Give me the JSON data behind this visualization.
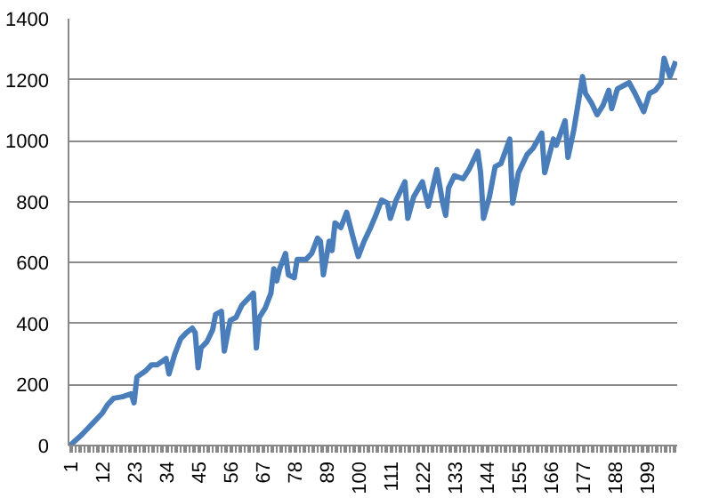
{
  "chart_data": {
    "type": "line",
    "x": [
      1,
      5,
      8,
      12,
      14,
      16,
      19,
      22,
      23,
      24,
      27,
      29,
      31,
      34,
      35,
      37,
      39,
      41,
      43,
      44,
      45,
      46,
      48,
      50,
      51,
      53,
      54,
      56,
      58,
      60,
      62,
      64,
      65,
      66,
      68,
      70,
      71,
      72,
      73,
      75,
      76,
      78,
      79,
      82,
      84,
      86,
      87,
      88,
      90,
      91,
      92,
      94,
      96,
      98,
      100,
      102,
      104,
      106,
      108,
      110,
      111,
      113,
      116,
      117,
      119,
      122,
      124,
      127,
      129,
      130,
      131,
      133,
      136,
      138,
      141,
      142,
      143,
      145,
      147,
      149,
      152,
      153,
      155,
      158,
      160,
      163,
      164,
      167,
      168,
      171,
      172,
      174,
      177,
      178,
      180,
      182,
      184,
      186,
      187,
      189,
      193,
      195,
      198,
      200,
      202,
      204,
      205,
      207,
      209
    ],
    "series": [
      {
        "color": "#4a7ebb",
        "values": [
          0,
          35,
          65,
          105,
          135,
          155,
          160,
          170,
          140,
          225,
          245,
          265,
          265,
          285,
          235,
          300,
          350,
          370,
          385,
          370,
          255,
          320,
          340,
          380,
          430,
          440,
          310,
          410,
          420,
          460,
          480,
          500,
          320,
          420,
          450,
          500,
          580,
          540,
          580,
          630,
          560,
          550,
          610,
          610,
          630,
          680,
          670,
          560,
          670,
          640,
          730,
          715,
          765,
          690,
          620,
          670,
          710,
          755,
          805,
          795,
          745,
          805,
          865,
          745,
          815,
          865,
          785,
          905,
          795,
          755,
          845,
          885,
          875,
          905,
          965,
          895,
          745,
          815,
          915,
          925,
          1005,
          795,
          895,
          955,
          975,
          1025,
          895,
          1005,
          985,
          1065,
          945,
          1035,
          1210,
          1155,
          1125,
          1085,
          1115,
          1165,
          1105,
          1170,
          1190,
          1155,
          1095,
          1155,
          1165,
          1190,
          1270,
          1210,
          1260
        ]
      }
    ],
    "xlim": [
      0.5,
      209.5
    ],
    "xticks": [
      1,
      12,
      23,
      34,
      45,
      56,
      67,
      78,
      89,
      100,
      111,
      122,
      133,
      144,
      155,
      166,
      177,
      188,
      199
    ],
    "ylim": [
      0,
      1400
    ],
    "yticks": [
      0,
      200,
      400,
      600,
      800,
      1000,
      1200,
      1400
    ],
    "grid": "y",
    "marker": "none",
    "line_style": "solid"
  }
}
